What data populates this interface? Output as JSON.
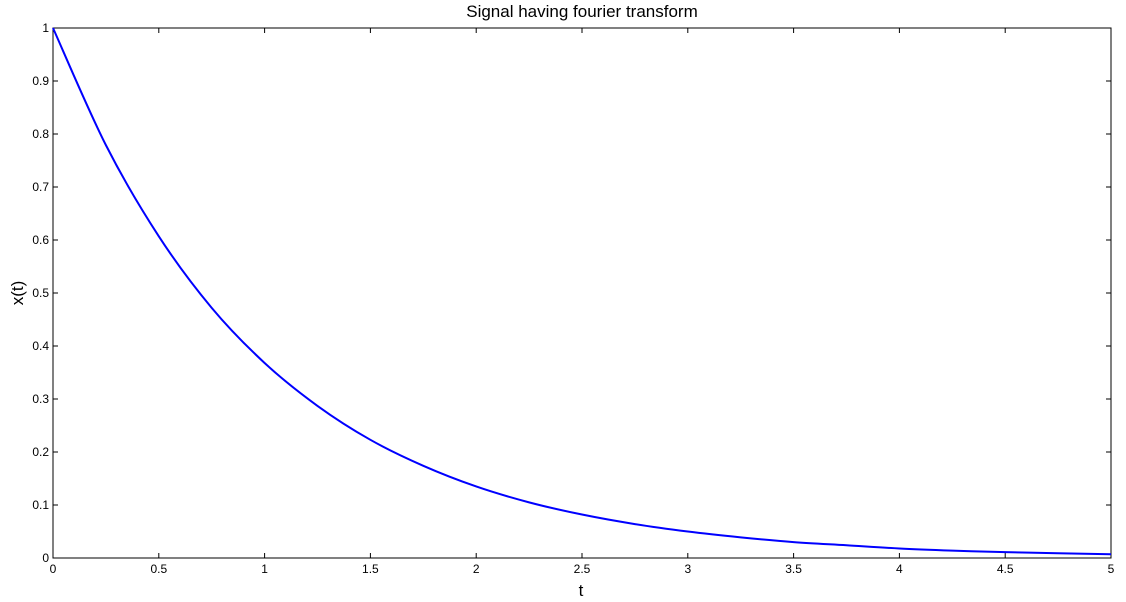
{
  "chart_data": {
    "type": "line",
    "title": "Signal having fourier transform",
    "xlabel": "t",
    "ylabel": "x(t)",
    "xlim": [
      0,
      5
    ],
    "ylim": [
      0,
      1
    ],
    "grid": false,
    "x_ticks": [
      0,
      0.5,
      1,
      1.5,
      2,
      2.5,
      3,
      3.5,
      4,
      4.5,
      5
    ],
    "x_tick_labels": [
      "0",
      "0.5",
      "1",
      "1.5",
      "2",
      "2.5",
      "3",
      "3.5",
      "4",
      "4.5",
      "5"
    ],
    "y_ticks": [
      0,
      0.1,
      0.2,
      0.3,
      0.4,
      0.5,
      0.6,
      0.7,
      0.8,
      0.9,
      1
    ],
    "y_tick_labels": [
      "0",
      "0.1",
      "0.2",
      "0.3",
      "0.4",
      "0.5",
      "0.6",
      "0.7",
      "0.8",
      "0.9",
      "1"
    ],
    "series": [
      {
        "color": "#0000ff",
        "x": [
          0,
          0.25,
          0.5,
          0.75,
          1,
          1.25,
          1.5,
          1.75,
          2,
          2.25,
          2.5,
          2.75,
          3,
          3.25,
          3.5,
          3.75,
          4,
          4.25,
          4.5,
          4.75,
          5
        ],
        "y": [
          1,
          0.779,
          0.607,
          0.472,
          0.368,
          0.287,
          0.223,
          0.174,
          0.135,
          0.105,
          0.082,
          0.064,
          0.05,
          0.039,
          0.03,
          0.024,
          0.018,
          0.014,
          0.011,
          0.009,
          0.007
        ]
      }
    ]
  }
}
